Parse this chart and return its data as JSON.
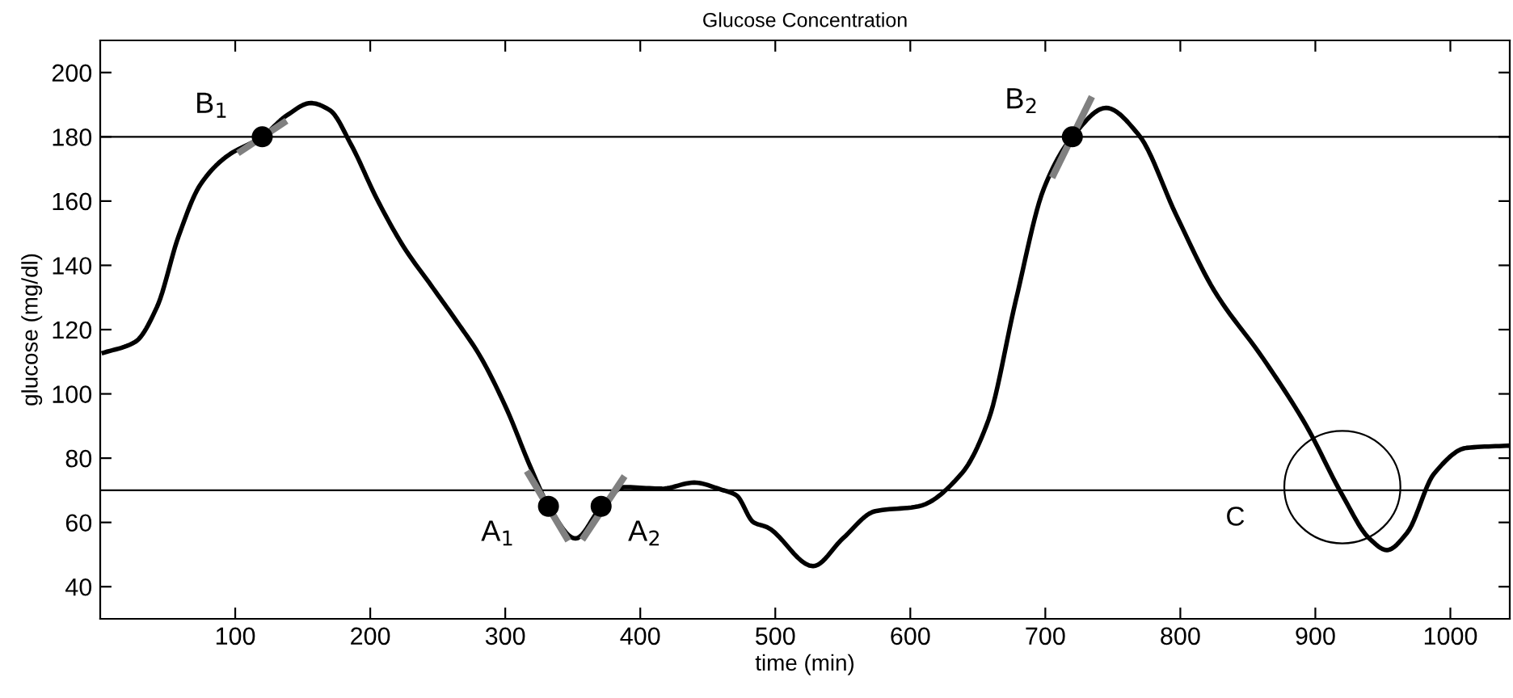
{
  "chart_data": {
    "type": "line",
    "title": "Glucose Concentration",
    "xlabel": "time (min)",
    "ylabel": "glucose (mg/dl)",
    "xlim": [
      0,
      1044
    ],
    "ylim": [
      30,
      210
    ],
    "xticks": [
      100,
      200,
      300,
      400,
      500,
      600,
      700,
      800,
      900,
      1000
    ],
    "yticks": [
      40,
      60,
      80,
      100,
      120,
      140,
      160,
      180,
      200
    ],
    "grid": false,
    "legend": false,
    "series": [
      {
        "color": "#000000",
        "x": [
          1,
          26,
          42,
          58,
          74,
          94,
          120,
          138,
          156,
          170,
          186,
          205,
          225,
          245,
          265,
          281,
          301,
          319,
          332,
          352,
          371,
          388,
          416,
          440,
          460,
          471,
          484,
          494,
          528,
          550,
          574,
          606,
          638,
          658,
          678,
          699,
          720,
          745,
          769,
          797,
          825,
          861,
          893,
          920,
          940,
          953,
          968,
          988,
          1012,
          1044
        ],
        "values": [
          112.6,
          116.2,
          127,
          149,
          165,
          174,
          180,
          186.6,
          190.5,
          188.3,
          177.4,
          160.6,
          145.6,
          133.8,
          122,
          112,
          95.3,
          76.9,
          65.2,
          55,
          64.8,
          71,
          70.5,
          72.4,
          70.2,
          68.5,
          60,
          58.5,
          46.4,
          55,
          63.5,
          65,
          75.2,
          92,
          128.8,
          164,
          180,
          189,
          180.7,
          155.6,
          132.2,
          111.2,
          90.3,
          68.5,
          55,
          51.4,
          56.8,
          75.2,
          83.2,
          83.9
        ]
      },
      {
        "color": "#808080",
        "x": [
          102,
          138
        ],
        "values": [
          174.9,
          185
        ]
      },
      {
        "color": "#808080",
        "x": [
          705,
          734.5
        ],
        "values": [
          167.3,
          192.5
        ]
      },
      {
        "color": "#808080",
        "x": [
          316,
          346.7
        ],
        "values": [
          76,
          54.3
        ]
      },
      {
        "color": "#808080",
        "x": [
          357,
          388.4
        ],
        "values": [
          54.6,
          74.4
        ]
      },
      {
        "type": "scatter",
        "color": "#000000",
        "marker": "circle",
        "x": [
          120,
          332,
          371,
          720
        ],
        "values": [
          180,
          65,
          65,
          180
        ]
      }
    ],
    "ref_lines": [
      {
        "axis": "y",
        "value": 180,
        "color": "#000000"
      },
      {
        "axis": "y",
        "value": 70,
        "color": "#000000"
      }
    ],
    "annotations": [
      "B$_{1}$",
      "A$_{1}$",
      "A$_{2}$",
      "B$_{2}$",
      "C"
    ]
  }
}
